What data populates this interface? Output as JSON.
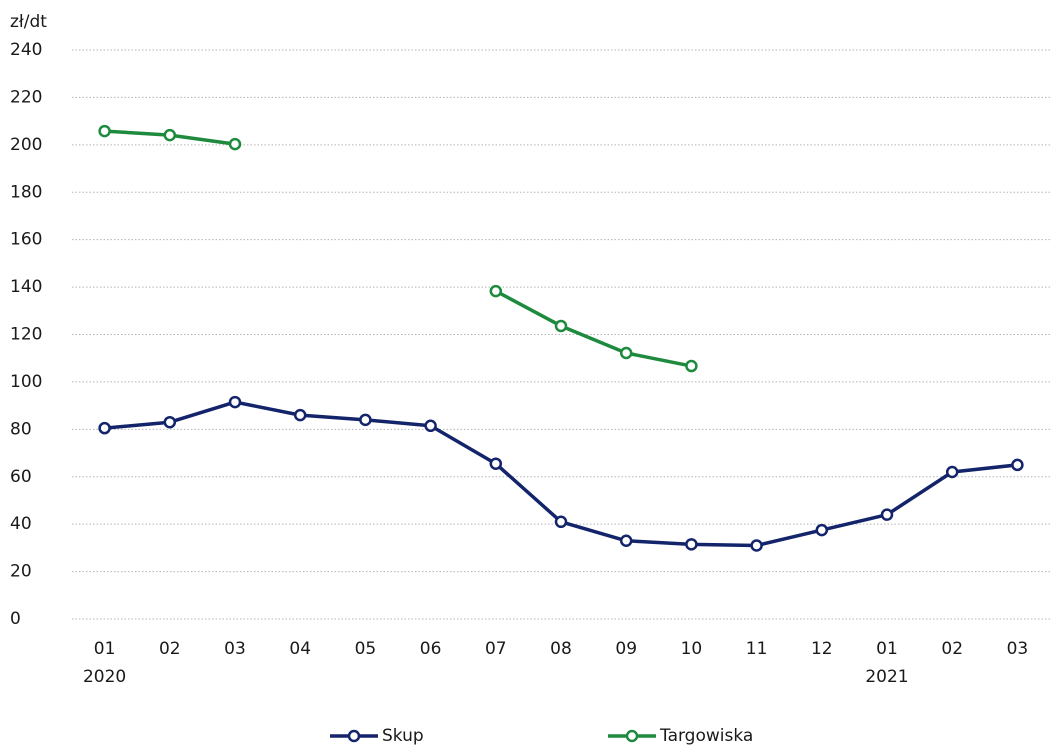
{
  "chart_data": {
    "type": "line",
    "y_axis_label": "zł/dt",
    "categories": [
      "01",
      "02",
      "03",
      "04",
      "05",
      "06",
      "07",
      "08",
      "09",
      "10",
      "11",
      "12",
      "01",
      "02",
      "03"
    ],
    "year_labels": [
      "2020",
      null,
      null,
      null,
      null,
      null,
      null,
      null,
      null,
      null,
      null,
      null,
      "2021",
      null,
      null
    ],
    "series": [
      {
        "name": "Skup",
        "color": "#13246b",
        "values": [
          80.5,
          83,
          91.5,
          86,
          84,
          81.5,
          65.5,
          41,
          33,
          31.5,
          31,
          37.5,
          44,
          62,
          65
        ]
      },
      {
        "name": "Targowiska",
        "color": "#1e8a3e",
        "values": [
          205.8,
          204.1,
          200.3,
          null,
          null,
          null,
          138.3,
          123.6,
          112.2,
          106.7,
          null,
          null,
          null,
          null,
          null
        ]
      }
    ],
    "ylim": [
      0,
      240
    ],
    "yticks": [
      0,
      20,
      40,
      60,
      80,
      100,
      120,
      140,
      160,
      180,
      200,
      220,
      240
    ],
    "grid": true,
    "legend": "bottom"
  }
}
